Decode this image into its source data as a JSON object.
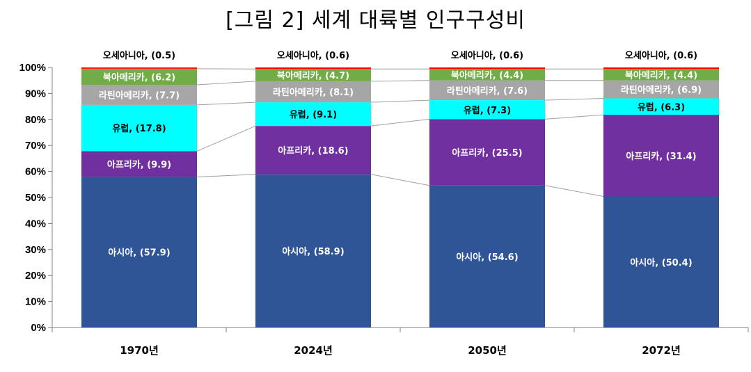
{
  "chart_data": {
    "type": "bar",
    "stacked": true,
    "title": "[그림 2] 세계 대륙별 인구구성비",
    "xlabel": "",
    "ylabel": "",
    "ylim": [
      0,
      100
    ],
    "yticks": [
      "0%",
      "10%",
      "20%",
      "30%",
      "40%",
      "50%",
      "60%",
      "70%",
      "80%",
      "90%",
      "100%"
    ],
    "categories": [
      "1970년",
      "2024년",
      "2050년",
      "2072년"
    ],
    "series": [
      {
        "name": "아시아",
        "color": "#2F5597",
        "label_color": "#ffffff",
        "values": [
          57.9,
          58.9,
          54.6,
          50.4
        ],
        "labels": [
          "아시아, (57.9)",
          "아시아, (58.9)",
          "아시아, (54.6)",
          "아시아, (50.4)"
        ]
      },
      {
        "name": "아프리카",
        "color": "#7030A0",
        "label_color": "#ffffff",
        "values": [
          9.9,
          18.6,
          25.5,
          31.4
        ],
        "labels": [
          "아프리카, (9.9)",
          "아프리카, (18.6)",
          "아프리카, (25.5)",
          "아프리카, (31.4)"
        ]
      },
      {
        "name": "유럽",
        "color": "#00FFFF",
        "label_color": "#000000",
        "values": [
          17.8,
          9.1,
          7.3,
          6.3
        ],
        "labels": [
          "유럽, (17.8)",
          "유럽, (9.1)",
          "유럽, (7.3)",
          "유럽, (6.3)"
        ]
      },
      {
        "name": "라틴아메리카",
        "color": "#A6A6A6",
        "label_color": "#ffffff",
        "values": [
          7.7,
          8.1,
          7.6,
          6.9
        ],
        "labels": [
          "라틴아메리카, (7.7)",
          "라틴아메리카, (8.1)",
          "라틴아메리카, (7.6)",
          "라틴아메리카, (6.9)"
        ]
      },
      {
        "name": "북아메리카",
        "color": "#70AD47",
        "label_color": "#ffffff",
        "values": [
          6.2,
          4.7,
          4.4,
          4.4
        ],
        "labels": [
          "북아메리카, (6.2)",
          "북아메리카, (4.7)",
          "북아메리카, (4.4)",
          "북아메리카, (4.4)"
        ]
      },
      {
        "name": "오세아니아",
        "color": "#FF0000",
        "label_color": "#000000",
        "values": [
          0.5,
          0.6,
          0.6,
          0.6
        ],
        "labels": [
          "오세아니아, (0.5)",
          "오세아니아, (0.6)",
          "오세아니아, (0.6)",
          "오세아니아, (0.6)"
        ]
      }
    ],
    "legend": "none",
    "grid": false
  }
}
